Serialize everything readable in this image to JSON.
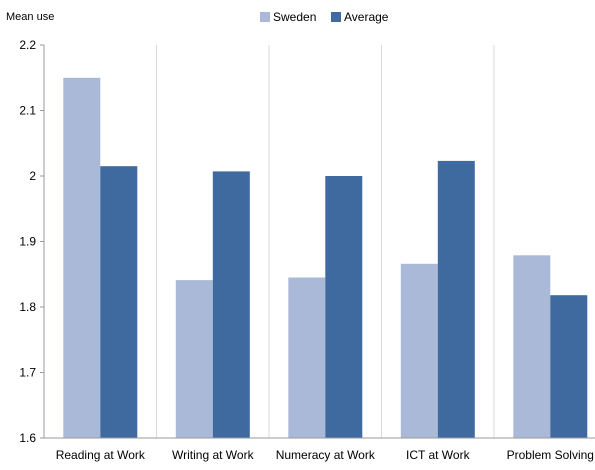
{
  "chart_data": {
    "type": "bar",
    "ylabel": "Mean use",
    "categories": [
      "Reading at Work",
      "Writing at Work",
      "Numeracy at Work",
      "ICT at Work",
      "Problem Solving"
    ],
    "series": [
      {
        "name": "Sweden",
        "color": "#aab9d8",
        "values": [
          2.15,
          1.841,
          1.845,
          1.866,
          1.879
        ]
      },
      {
        "name": "Average",
        "color": "#3e6aa0",
        "values": [
          2.015,
          2.007,
          2.0,
          2.023,
          1.818
        ]
      }
    ],
    "ylim": [
      1.6,
      2.2
    ],
    "yticks": [
      "1.6",
      "1.7",
      "1.8",
      "1.9",
      "2",
      "2.1",
      "2.2"
    ],
    "legend_position": "top-center",
    "grid": "vertical"
  }
}
